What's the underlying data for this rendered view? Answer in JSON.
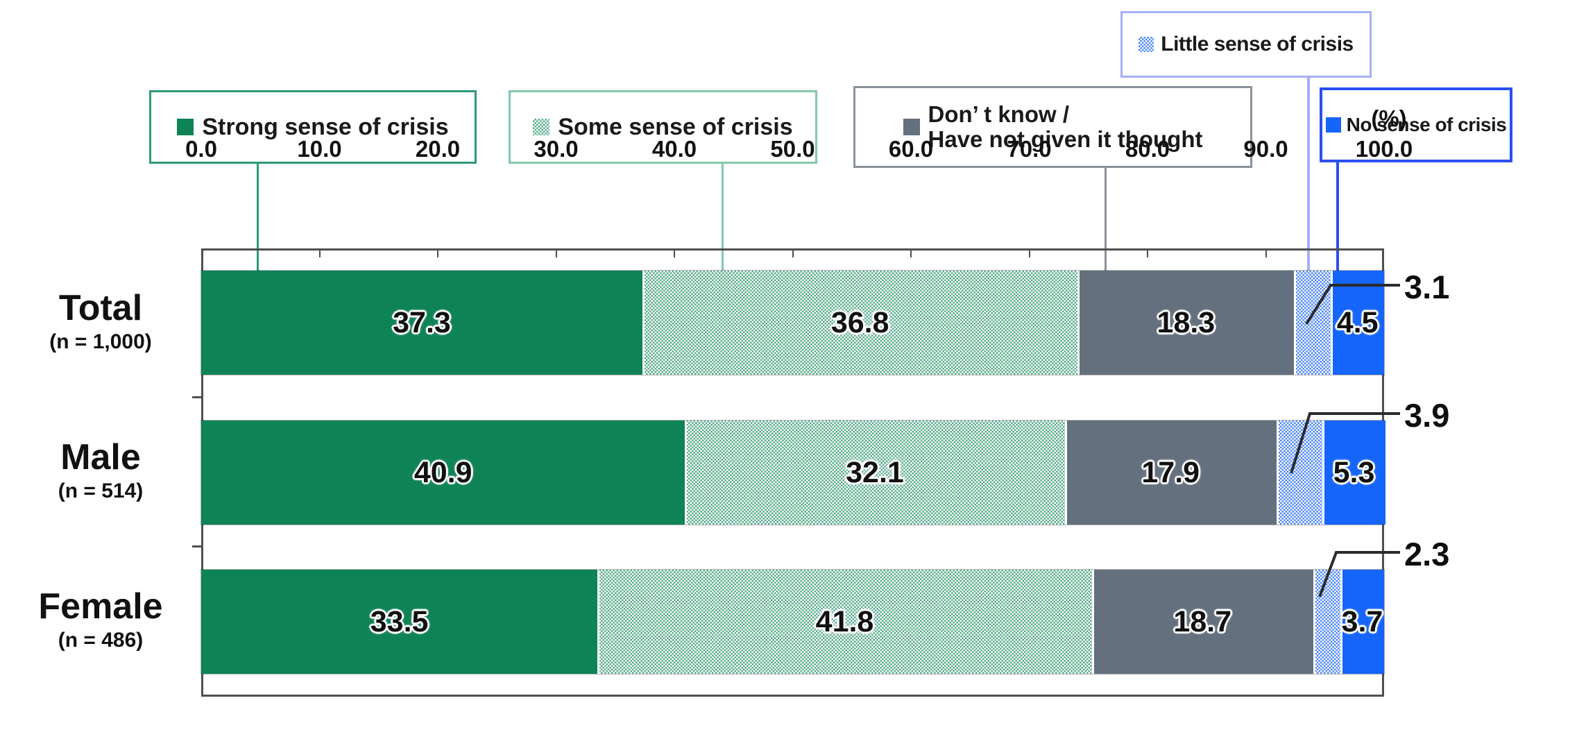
{
  "chart_data": {
    "type": "bar",
    "orientation": "horizontal-stacked",
    "unit_label": "(%)",
    "frame_color": "#4f4f4f",
    "x_axis": {
      "range": [
        0,
        100
      ],
      "ticks": [
        0,
        10,
        20,
        30,
        40,
        50,
        60,
        70,
        80,
        90,
        100
      ],
      "tick_format": "one-decimal"
    },
    "categories": [
      {
        "label": "Total",
        "n_label": "(n = 1,000)"
      },
      {
        "label": "Male",
        "n_label": "(n = 514)"
      },
      {
        "label": "Female",
        "n_label": "(n = 486)"
      }
    ],
    "series": [
      {
        "name": "Strong sense of crisis",
        "style": "solid",
        "color": "#0E8355",
        "values": [
          37.3,
          40.9,
          33.5
        ],
        "label_placement": "inline"
      },
      {
        "name": "Some sense of crisis",
        "style": "checker",
        "color": "#57AC8A",
        "values": [
          36.8,
          32.1,
          41.8
        ],
        "label_placement": "inline"
      },
      {
        "name": "Don’ t know / Have not given it thought",
        "style": "solid",
        "color": "#64707E",
        "values": [
          18.3,
          17.9,
          18.7
        ],
        "label_placement": "inline"
      },
      {
        "name": "Little sense of crisis",
        "style": "checker",
        "color": "#4C87F8",
        "values": [
          3.1,
          3.9,
          2.3
        ],
        "label_placement": "callout"
      },
      {
        "name": "No sense of crisis",
        "style": "solid",
        "color": "#1565FA",
        "values": [
          4.5,
          5.3,
          3.7
        ],
        "label_placement": "inline"
      }
    ],
    "legend": [
      {
        "label": "Strong sense of crisis",
        "border": "#2E9B73",
        "series_index": 0
      },
      {
        "label": "Some sense of crisis",
        "border": "#82C9A9",
        "series_index": 1
      },
      {
        "lines": [
          "Don’ t know /",
          "Have not given it thought"
        ],
        "border": "#8A939B",
        "series_index": 2
      },
      {
        "label": "Little sense of crisis",
        "border": "#A3B0F8",
        "series_index": 3
      },
      {
        "label": "No sense of crisis",
        "border": "#2B4FF2",
        "series_index": 4
      }
    ]
  }
}
